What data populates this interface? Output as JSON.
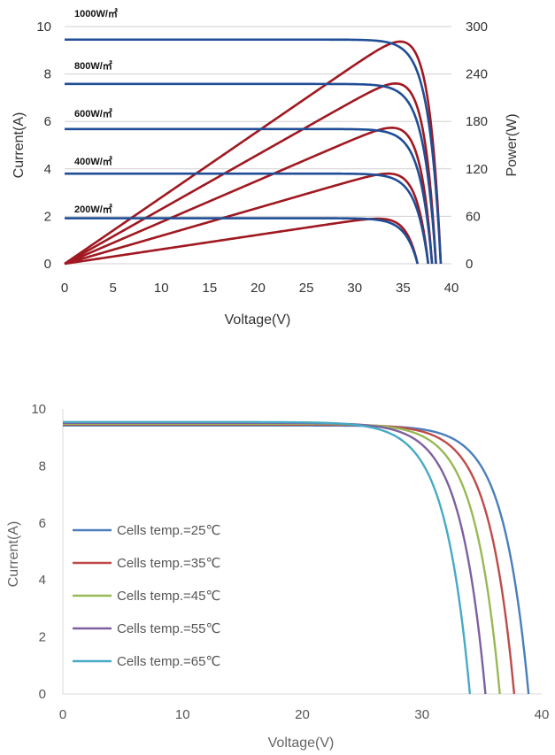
{
  "chart_data": [
    {
      "type": "line",
      "xlabel": "Voltage(V)",
      "ylabel": "Current(A)",
      "y2label": "Power(W)",
      "xlim": [
        0,
        40
      ],
      "ylim": [
        0,
        10
      ],
      "y2lim": [
        0,
        300
      ],
      "x_ticks": [
        0,
        5,
        10,
        15,
        20,
        25,
        30,
        35,
        40
      ],
      "y_ticks": [
        0,
        2,
        4,
        6,
        8,
        10
      ],
      "y2_ticks": [
        0,
        60,
        120,
        180,
        240,
        300
      ],
      "grid": "horizontal",
      "series": [
        {
          "name": "1000W/㎡",
          "isc": 9.45,
          "voc": 38.9,
          "vmp": 31.5,
          "pmax": 281
        },
        {
          "name": "800W/㎡",
          "isc": 7.58,
          "voc": 38.4,
          "vmp": 31.8,
          "pmax": 228
        },
        {
          "name": "600W/㎡",
          "isc": 5.68,
          "voc": 38.0,
          "vmp": 31.8,
          "pmax": 172
        },
        {
          "name": "400W/㎡",
          "isc": 3.8,
          "voc": 37.6,
          "vmp": 31.5,
          "pmax": 114
        },
        {
          "name": "200W/㎡",
          "isc": 1.92,
          "voc": 36.5,
          "vmp": 31.0,
          "pmax": 57
        }
      ]
    },
    {
      "type": "line",
      "xlabel": "Voltage(V)",
      "ylabel": "Current(A)",
      "xlim": [
        0,
        40
      ],
      "ylim": [
        0,
        10
      ],
      "x_ticks": [
        0,
        10,
        20,
        30,
        40
      ],
      "y_ticks": [
        0,
        2,
        4,
        6,
        8,
        10
      ],
      "grid": "none",
      "legend": "lower-left",
      "series": [
        {
          "name": "Cells temp.=25℃",
          "color": "#4a7ebb",
          "isc": 9.42,
          "voc": 38.9
        },
        {
          "name": "Cells temp.=35℃",
          "color": "#be4b48",
          "isc": 9.45,
          "voc": 37.7
        },
        {
          "name": "Cells temp.=45℃",
          "color": "#98b954",
          "isc": 9.48,
          "voc": 36.5
        },
        {
          "name": "Cells temp.=55℃",
          "color": "#7d60a0",
          "isc": 9.51,
          "voc": 35.3
        },
        {
          "name": "Cells temp.=65℃",
          "color": "#46aac5",
          "isc": 9.54,
          "voc": 34.0
        }
      ]
    }
  ]
}
